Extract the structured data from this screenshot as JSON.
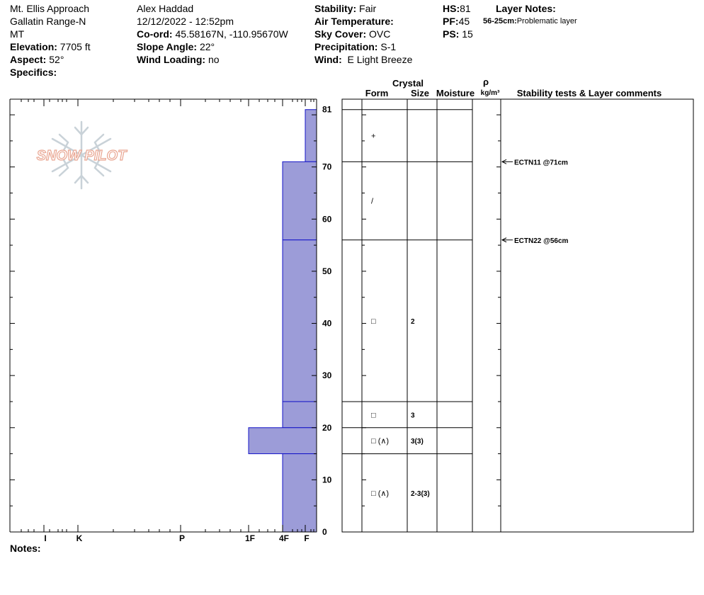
{
  "header": {
    "col1": {
      "location": "Mt. Ellis Approach",
      "range": "Gallatin Range-N",
      "state": "MT",
      "elevation_label": "Elevation:",
      "elevation": "7705 ft",
      "aspect_label": "Aspect:",
      "aspect": "52°",
      "specifics_label": "Specifics:"
    },
    "col2": {
      "observer": "Alex Haddad",
      "datetime": "12/12/2022 - 12:52pm",
      "coord_label": "Co-ord:",
      "coord": "45.58167N, -110.95670W",
      "slope_label": "Slope Angle:",
      "slope": "22°",
      "wind_loading_label": "Wind Loading:",
      "wind_loading": "no"
    },
    "col3": {
      "stability_label": "Stability:",
      "stability": "Fair",
      "air_temp_label": "Air Temperature:",
      "sky_label": "Sky Cover:",
      "sky": "OVC",
      "precip_label": "Precipitation:",
      "precip": "S-1",
      "wind_label": "Wind:",
      "wind": "E Light Breeze"
    },
    "col4": {
      "hs_label": "HS:",
      "hs": "81",
      "pf_label": "PF:",
      "pf": "45",
      "ps_label": "PS:",
      "ps": "15"
    },
    "layer_notes": {
      "title": "Layer Notes:",
      "range": "56-25cm:",
      "text": "Problematic layer"
    }
  },
  "logo_text": "SNOW PILOT",
  "notes_label": "Notes:",
  "columns": {
    "crystal": "Crystal",
    "form": "Form",
    "size": "Size",
    "moisture": "Moisture",
    "rho": "ρ",
    "density": "kg/m³",
    "stability": "Stability tests & Layer comments"
  },
  "colors": {
    "bar_fill": "#9c9cd8",
    "bar_stroke": "#1414c8",
    "logo": "#e9a692"
  },
  "chart_data": {
    "type": "bar",
    "title": "",
    "ylabel": "",
    "ylim": [
      0,
      83
    ],
    "y_ticks": [
      0,
      10,
      20,
      30,
      40,
      50,
      60,
      70,
      81
    ],
    "hardness_axis": [
      "I",
      "K",
      "P",
      "1F",
      "4F",
      "F"
    ],
    "hardness_profile": [
      {
        "bottom": 71,
        "top": 81,
        "hardness": "F"
      },
      {
        "bottom": 56,
        "top": 71,
        "hardness": "4F"
      },
      {
        "bottom": 25,
        "top": 56,
        "hardness": "4F"
      },
      {
        "bottom": 20,
        "top": 25,
        "hardness": "4F"
      },
      {
        "bottom": 15,
        "top": 20,
        "hardness": "1F"
      },
      {
        "bottom": 0,
        "top": 15,
        "hardness": "4F"
      }
    ],
    "layer_boundaries": [
      81,
      71,
      56,
      25,
      20,
      15,
      0
    ],
    "layers": [
      {
        "bottom": 71,
        "top": 81,
        "form": "+",
        "size": ""
      },
      {
        "bottom": 56,
        "top": 71,
        "form": "/",
        "size": ""
      },
      {
        "bottom": 25,
        "top": 56,
        "form": "□",
        "size": "2"
      },
      {
        "bottom": 20,
        "top": 25,
        "form": "□",
        "size": "3"
      },
      {
        "bottom": 15,
        "top": 20,
        "form": "□ (∧)",
        "size": "3(3)"
      },
      {
        "bottom": 0,
        "top": 15,
        "form": "□ (∧)",
        "size": "2-3(3)"
      }
    ],
    "stability_tests": [
      {
        "depth": 71,
        "label": "ECTN11 @71cm"
      },
      {
        "depth": 56,
        "label": "ECTN22 @56cm"
      }
    ]
  }
}
